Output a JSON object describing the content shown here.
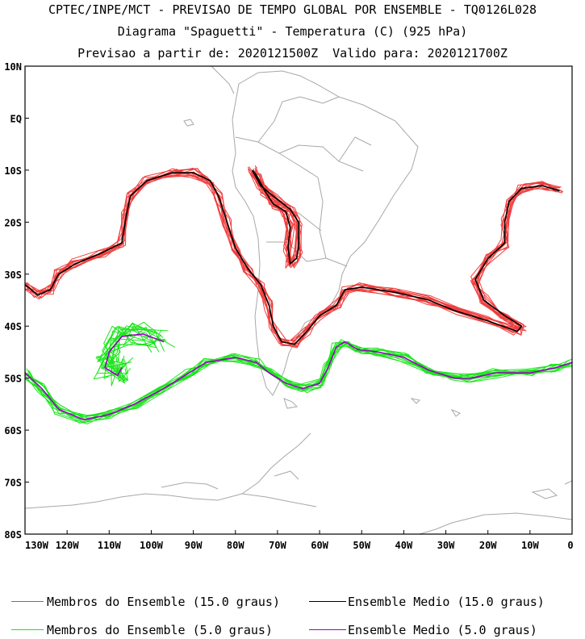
{
  "header": {
    "line1": "CPTEC/INPE/MCT - PREVISAO DE TEMPO GLOBAL POR ENSEMBLE - TQ0126L028",
    "line2": "Diagrama \"Spaguetti\" - Temperatura (C) (925 hPa)",
    "line3": "Previsao a partir de: 2020121500Z  Valido para: 2020121700Z"
  },
  "map": {
    "lat_labels": [
      "10N",
      "EQ",
      "10S",
      "20S",
      "30S",
      "40S",
      "50S",
      "60S",
      "70S",
      "80S"
    ],
    "lon_labels": [
      "130W",
      "120W",
      "110W",
      "100W",
      "90W",
      "80W",
      "70W",
      "60W",
      "50W",
      "40W",
      "30W",
      "20W",
      "10W",
      "0"
    ],
    "lon_range": [
      -130,
      0
    ],
    "lat_range": [
      -80,
      10
    ]
  },
  "legend": {
    "items": [
      {
        "label": "Membros do Ensemble (15.0 graus)",
        "color": "#f03c3c"
      },
      {
        "label": "Ensemble Medio (15.0 graus)",
        "color": "#000000"
      },
      {
        "label": "Membros do Ensemble (5.0 graus)",
        "color": "#19e619"
      },
      {
        "label": "Ensemble Medio (5.0 graus)",
        "color": "#a000c8"
      }
    ]
  },
  "chart_data": {
    "type": "line",
    "contours": [
      {
        "name": "Ensemble Medio (15.0 graus)",
        "color": "#000000",
        "lines": [
          [
            [
              -130,
              -32
            ],
            [
              -127,
              -34
            ],
            [
              -124,
              -33
            ],
            [
              -122,
              -30
            ],
            [
              -118,
              -28
            ],
            [
              -112,
              -26
            ],
            [
              -107,
              -24
            ],
            [
              -106,
              -19
            ],
            [
              -105,
              -15
            ],
            [
              -101,
              -12
            ],
            [
              -95,
              -10.5
            ],
            [
              -90,
              -10.5
            ],
            [
              -86,
              -12
            ],
            [
              -84,
              -15
            ],
            [
              -82,
              -20
            ],
            [
              -80,
              -25
            ],
            [
              -77,
              -29
            ],
            [
              -74,
              -32
            ],
            [
              -72,
              -36
            ],
            [
              -71,
              -40
            ],
            [
              -69,
              -43
            ],
            [
              -66,
              -43.5
            ],
            [
              -63,
              -41
            ],
            [
              -60,
              -38
            ],
            [
              -56,
              -36
            ],
            [
              -54,
              -33
            ],
            [
              -50,
              -32.5
            ],
            [
              -42,
              -33.5
            ],
            [
              -34,
              -35
            ],
            [
              -28,
              -37
            ],
            [
              -20,
              -39
            ],
            [
              -13,
              -41
            ],
            [
              -12,
              -40
            ],
            [
              -16,
              -38
            ],
            [
              -21,
              -35
            ],
            [
              -23,
              -31
            ],
            [
              -20,
              -27
            ],
            [
              -16,
              -24
            ],
            [
              -16,
              -20
            ],
            [
              -15,
              -16
            ],
            [
              -12,
              -13.5
            ],
            [
              -7,
              -13
            ],
            [
              -3,
              -14
            ]
          ],
          [
            [
              -76,
              -10
            ],
            [
              -74,
              -13
            ],
            [
              -71,
              -15
            ],
            [
              -67,
              -17.5
            ],
            [
              -65,
              -20
            ],
            [
              -65,
              -25
            ],
            [
              -65.5,
              -27
            ],
            [
              -67,
              -28
            ],
            [
              -67.5,
              -25
            ],
            [
              -67,
              -21
            ],
            [
              -68,
              -18
            ],
            [
              -71,
              -16.5
            ],
            [
              -73,
              -14
            ],
            [
              -75,
              -11
            ],
            [
              -76,
              -10
            ]
          ]
        ]
      },
      {
        "name": "Ensemble Medio (5.0 graus)",
        "color": "#a000c8",
        "lines": [
          [
            [
              -130,
              -49
            ],
            [
              -126,
              -52
            ],
            [
              -122,
              -56
            ],
            [
              -116,
              -58
            ],
            [
              -110,
              -57
            ],
            [
              -104,
              -55
            ],
            [
              -97,
              -52
            ],
            [
              -91,
              -49
            ],
            [
              -87,
              -47
            ],
            [
              -80,
              -46
            ],
            [
              -75,
              -47
            ],
            [
              -72,
              -49
            ],
            [
              -68,
              -51
            ],
            [
              -64,
              -52
            ],
            [
              -60,
              -51
            ],
            [
              -58,
              -48
            ],
            [
              -56,
              -44
            ],
            [
              -54,
              -43
            ],
            [
              -51,
              -44.5
            ],
            [
              -46,
              -45
            ],
            [
              -40,
              -46
            ],
            [
              -34,
              -48.5
            ],
            [
              -28,
              -50
            ],
            [
              -24,
              -50
            ],
            [
              -18,
              -49
            ],
            [
              -10,
              -49
            ],
            [
              -4,
              -48
            ],
            [
              0,
              -47
            ]
          ],
          [
            [
              -97,
              -43
            ],
            [
              -102,
              -41.5
            ],
            [
              -107,
              -42
            ],
            [
              -110,
              -45
            ],
            [
              -111,
              -48
            ],
            [
              -108,
              -49.5
            ],
            [
              -107,
              -48
            ]
          ]
        ]
      }
    ]
  }
}
